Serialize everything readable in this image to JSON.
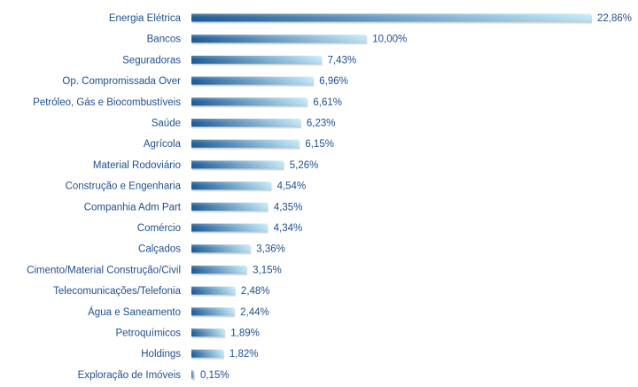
{
  "chart_data": {
    "type": "bar",
    "orientation": "horizontal",
    "categories": [
      "Energia Elétrica",
      "Bancos",
      "Seguradoras",
      "Op. Compromissada Over",
      "Petróleo, Gás e Biocombustíveis",
      "Saúde",
      "Agrícola",
      "Material Rodoviário",
      "Construção e Engenharia",
      "Companhia Adm Part",
      "Comércio",
      "Calçados",
      "Cimento/Material Construção/Civil",
      "Telecomunicações/Telefonia",
      "Água e Saneamento",
      "Petroquímicos",
      "Holdings",
      "Exploração de Imóveis"
    ],
    "values": [
      22.86,
      10.0,
      7.43,
      6.96,
      6.61,
      6.23,
      6.15,
      5.26,
      4.54,
      4.35,
      4.34,
      3.36,
      3.15,
      2.48,
      2.44,
      1.89,
      1.82,
      0.15
    ],
    "value_labels": [
      "22,86%",
      "10,00%",
      "7,43%",
      "6,96%",
      "6,61%",
      "6,23%",
      "6,15%",
      "5,26%",
      "4,54%",
      "4,35%",
      "4,34%",
      "3,36%",
      "3,15%",
      "2,48%",
      "2,44%",
      "1,89%",
      "1,82%",
      "0,15%"
    ],
    "unit": "%",
    "title": "",
    "xlabel": "",
    "ylabel": "",
    "xlim": [
      0,
      22.86
    ],
    "grid": false,
    "legend": "none"
  },
  "colors": {
    "bar_dark": "#1c5a96",
    "bar_light": "#bfe7f7",
    "label": "#1f4f8f"
  }
}
